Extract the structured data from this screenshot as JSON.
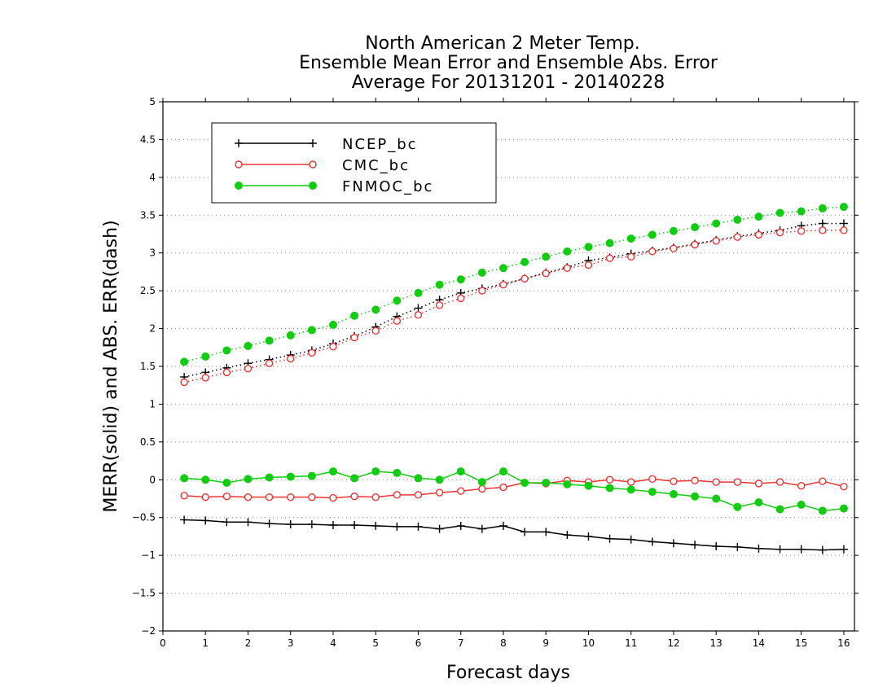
{
  "chart_data": {
    "type": "line",
    "title": [
      "North American 2 Meter Temp.",
      "Ensemble Mean Error and Ensemble Abs. Error",
      "Average For 20131201 - 20140228"
    ],
    "xlabel": "Forecast days",
    "ylabel": "MERR(solid) and ABS. ERR(dash)",
    "xlim": [
      0,
      16.25
    ],
    "ylim": [
      -2,
      5
    ],
    "xticks": [
      0,
      1,
      2,
      3,
      4,
      5,
      6,
      7,
      8,
      9,
      10,
      11,
      12,
      13,
      14,
      15,
      16
    ],
    "xtick_labels": [
      "0",
      "1",
      "2",
      "3",
      "4",
      "5",
      "6",
      "7",
      "8",
      "9",
      "10",
      "11",
      "12",
      "13",
      "14",
      "15",
      "16"
    ],
    "yticks": [
      -2,
      -1.5,
      -1,
      -0.5,
      0,
      0.5,
      1,
      1.5,
      2,
      2.5,
      3,
      3.5,
      4,
      4.5,
      5
    ],
    "ytick_labels": [
      "−2",
      "−1.5",
      "−1",
      "−0.5",
      "0",
      "0.5",
      "1",
      "1.5",
      "2",
      "2.5",
      "3",
      "3.5",
      "4",
      "4.5",
      "5"
    ],
    "grid": "horizontal dotted",
    "legend_position": "top-left",
    "x": [
      0.5,
      1,
      1.5,
      2,
      2.5,
      3,
      3.5,
      4,
      4.5,
      5,
      5.5,
      6,
      6.5,
      7,
      7.5,
      8,
      8.5,
      9,
      9.5,
      10,
      10.5,
      11,
      11.5,
      12,
      12.5,
      13,
      13.5,
      14,
      14.5,
      15,
      15.5,
      16
    ],
    "series": [
      {
        "name": "NCEP_bc",
        "color": "#000000",
        "marker": "plus",
        "merr": [
          -0.53,
          -0.54,
          -0.56,
          -0.56,
          -0.58,
          -0.59,
          -0.59,
          -0.6,
          -0.6,
          -0.61,
          -0.62,
          -0.62,
          -0.65,
          -0.61,
          -0.65,
          -0.61,
          -0.69,
          -0.69,
          -0.73,
          -0.75,
          -0.78,
          -0.79,
          -0.82,
          -0.84,
          -0.86,
          -0.88,
          -0.89,
          -0.91,
          -0.92,
          -0.92,
          -0.93,
          -0.92
        ],
        "abs_err": [
          1.36,
          1.42,
          1.48,
          1.54,
          1.59,
          1.65,
          1.71,
          1.8,
          1.9,
          2.02,
          2.16,
          2.27,
          2.38,
          2.47,
          2.53,
          2.59,
          2.66,
          2.74,
          2.81,
          2.9,
          2.94,
          2.99,
          3.03,
          3.07,
          3.12,
          3.17,
          3.22,
          3.26,
          3.3,
          3.36,
          3.39,
          3.39
        ]
      },
      {
        "name": "CMC_bc",
        "color": "#ee3333",
        "marker": "open-circle",
        "merr": [
          -0.21,
          -0.23,
          -0.22,
          -0.23,
          -0.23,
          -0.23,
          -0.23,
          -0.24,
          -0.22,
          -0.23,
          -0.2,
          -0.2,
          -0.17,
          -0.15,
          -0.12,
          -0.1,
          -0.04,
          -0.05,
          -0.01,
          -0.03,
          0.0,
          -0.03,
          0.01,
          -0.02,
          -0.01,
          -0.03,
          -0.03,
          -0.05,
          -0.03,
          -0.08,
          -0.02,
          -0.09
        ],
        "abs_err": [
          1.29,
          1.35,
          1.42,
          1.47,
          1.54,
          1.6,
          1.68,
          1.76,
          1.88,
          1.97,
          2.1,
          2.18,
          2.31,
          2.4,
          2.5,
          2.58,
          2.66,
          2.73,
          2.8,
          2.84,
          2.93,
          2.95,
          3.02,
          3.06,
          3.11,
          3.16,
          3.21,
          3.24,
          3.27,
          3.29,
          3.3,
          3.3
        ]
      },
      {
        "name": "FNMOC_bc",
        "color": "#11cc11",
        "marker": "filled-circle",
        "merr": [
          0.02,
          0.0,
          -0.04,
          0.01,
          0.03,
          0.04,
          0.05,
          0.11,
          0.02,
          0.11,
          0.09,
          0.02,
          0.0,
          0.11,
          -0.03,
          0.11,
          -0.04,
          -0.04,
          -0.06,
          -0.08,
          -0.11,
          -0.13,
          -0.16,
          -0.19,
          -0.22,
          -0.25,
          -0.36,
          -0.3,
          -0.39,
          -0.33,
          -0.41,
          -0.38
        ],
        "abs_err": [
          1.56,
          1.63,
          1.71,
          1.77,
          1.84,
          1.91,
          1.98,
          2.05,
          2.17,
          2.25,
          2.37,
          2.47,
          2.58,
          2.65,
          2.74,
          2.8,
          2.88,
          2.95,
          3.02,
          3.08,
          3.13,
          3.19,
          3.24,
          3.29,
          3.34,
          3.39,
          3.44,
          3.48,
          3.53,
          3.55,
          3.59,
          3.61
        ]
      }
    ]
  }
}
